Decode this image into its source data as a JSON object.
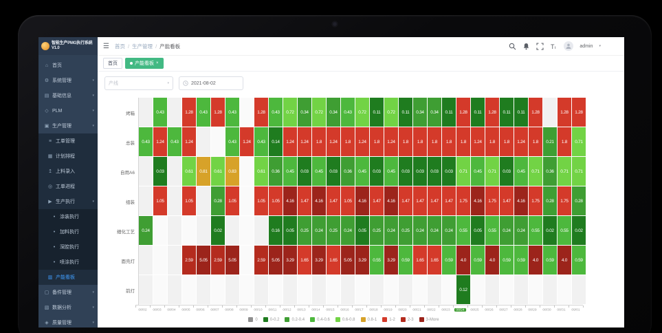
{
  "window": {
    "device": "laptop",
    "camera": "webcam-dot"
  },
  "sidebar": {
    "logo_text": "智能生产PMG执行系统V1.0",
    "items": [
      {
        "key": "home",
        "label": "首页",
        "icon": "home-icon",
        "type": "top",
        "caret": false,
        "active": false
      },
      {
        "key": "system",
        "label": "系统管理",
        "icon": "gear-icon",
        "type": "top",
        "caret": true,
        "active": false
      },
      {
        "key": "base-info",
        "label": "基础信息",
        "icon": "info-grid-icon",
        "type": "top",
        "caret": true,
        "active": false
      },
      {
        "key": "plm",
        "label": "PLM",
        "icon": "diamond-icon",
        "type": "top",
        "caret": true,
        "active": false
      },
      {
        "key": "production",
        "label": "生产管理",
        "icon": "factory-icon",
        "type": "top",
        "caret": true,
        "active": false
      },
      {
        "key": "work-order",
        "label": "工单管理",
        "icon": "list-icon",
        "type": "sub",
        "caret": false,
        "active": false
      },
      {
        "key": "schedule",
        "label": "计划排程",
        "icon": "calendar-icon",
        "type": "sub",
        "caret": false,
        "active": false
      },
      {
        "key": "material-input",
        "label": "上料录入",
        "icon": "upload-icon",
        "type": "sub",
        "caret": false,
        "active": false
      },
      {
        "key": "work-progress",
        "label": "工单进程",
        "icon": "progress-icon",
        "type": "sub",
        "caret": false,
        "active": false
      },
      {
        "key": "execution",
        "label": "生产执行",
        "icon": "play-icon",
        "type": "sub",
        "caret": true,
        "active": false
      },
      {
        "key": "coating-exec",
        "label": "涂装执行",
        "icon": "dot-icon",
        "type": "sub2",
        "caret": false,
        "active": false
      },
      {
        "key": "feeding-exec",
        "label": "加料执行",
        "icon": "dot-icon",
        "type": "sub2",
        "caret": false,
        "active": false
      },
      {
        "key": "cavity-exec",
        "label": "深腔执行",
        "icon": "dot-icon",
        "type": "sub2",
        "caret": false,
        "active": false
      },
      {
        "key": "spray-exec",
        "label": "喷涂执行",
        "icon": "dot-icon",
        "type": "sub2",
        "caret": false,
        "active": false
      },
      {
        "key": "capacity-board",
        "label": "产能看板",
        "icon": "board-icon",
        "type": "sub",
        "caret": false,
        "active": true
      },
      {
        "key": "spare-parts",
        "label": "备件管理",
        "icon": "box-icon",
        "type": "top",
        "caret": true,
        "active": false
      },
      {
        "key": "data-analysis",
        "label": "数据分析",
        "icon": "chart-icon",
        "type": "top",
        "caret": true,
        "active": false
      },
      {
        "key": "quality",
        "label": "质量管理",
        "icon": "quality-icon",
        "type": "top",
        "caret": true,
        "active": false
      }
    ]
  },
  "header": {
    "breadcrumb": [
      "首页",
      "生产管理",
      "产能看板"
    ],
    "icons": [
      "search-icon",
      "bell-icon",
      "fullscreen-icon",
      "font-size-icon"
    ],
    "user_name": "admin"
  },
  "tabs": [
    {
      "label": "首页",
      "active": false,
      "closable": false
    },
    {
      "label": "产能看板",
      "active": true,
      "closable": true
    }
  ],
  "filters": {
    "line_placeholder": "产线",
    "date_value": "2021-08-02"
  },
  "chart_data": {
    "type": "heatmap",
    "title": "",
    "xlabel": "",
    "ylabel": "",
    "x_labels": [
      "08/02",
      "08/03",
      "08/04",
      "08/05",
      "08/06",
      "08/07",
      "08/08",
      "08/09",
      "08/10",
      "08/11",
      "08/12",
      "08/13",
      "08/14",
      "08/15",
      "08/16",
      "08/17",
      "08/18",
      "08/19",
      "08/20",
      "08/21",
      "08/22",
      "08/23",
      "08/24",
      "08/25",
      "08/26",
      "08/27",
      "08/28",
      "08/29",
      "08/30",
      "08/31",
      "09/01"
    ],
    "highlight_x": "08/24",
    "categories": [
      "烤箱",
      "总装",
      "自用A6",
      "组装",
      "细化工艺",
      "面壳灯",
      "前灯"
    ],
    "series": [
      {
        "name": "烤箱",
        "values": [
          null,
          "0.43",
          null,
          "1.28",
          "0.43",
          "1.28",
          "0.43",
          null,
          "1.28",
          "0.43",
          "0.72",
          "0.34",
          "0.72",
          "0.34",
          "0.43",
          "0.72",
          "0.11",
          "0.72",
          "0.11",
          "0.34",
          "0.34",
          "0.11",
          "1.28",
          "0.11",
          "1.28",
          "0.11",
          "0.11",
          "1.28",
          null,
          "1.28",
          "1.28"
        ]
      },
      {
        "name": "总装",
        "values": [
          "0.43",
          "1.24",
          "0.43",
          "1.24",
          null,
          null,
          "0.43",
          "1.24",
          "0.43",
          "0.14",
          "1.24",
          "1.24",
          "1.8",
          "1.24",
          "1.8",
          "1.24",
          "1.8",
          "1.24",
          "1.8",
          "1.8",
          "1.8",
          "1.8",
          "1.8",
          "1.24",
          "1.8",
          "1.8",
          "1.24",
          "1.8",
          "0.21",
          "1.8",
          "0.71"
        ]
      },
      {
        "name": "自用A6",
        "values": [
          null,
          "0.03",
          null,
          "0.61",
          "0.81",
          "0.61",
          "0.83",
          null,
          "0.61",
          "0.36",
          "0.45",
          "0.03",
          "0.45",
          "0.03",
          "0.36",
          "0.45",
          "0.03",
          "0.45",
          "0.03",
          "0.03",
          "0.03",
          "0.03",
          "0.71",
          "0.45",
          "0.71",
          "0.03",
          "0.45",
          "0.71",
          "0.36",
          "0.71",
          "0.71"
        ]
      },
      {
        "name": "组装",
        "values": [
          null,
          "1.05",
          null,
          "1.05",
          null,
          "0.28",
          "1.05",
          null,
          "1.05",
          "1.05",
          "4.16",
          "1.47",
          "4.16",
          "1.47",
          "1.05",
          "4.16",
          "1.47",
          "4.16",
          "1.47",
          "1.47",
          "1.47",
          "1.47",
          "1.75",
          "4.16",
          "1.75",
          "1.47",
          "4.16",
          "1.75",
          "0.28",
          "1.75",
          "0.28"
        ]
      },
      {
        "name": "细化工艺",
        "values": [
          "0.24",
          null,
          null,
          null,
          null,
          "0.02",
          null,
          null,
          null,
          "0.16",
          "0.05",
          "0.25",
          "0.24",
          "0.25",
          "0.24",
          "0.05",
          "0.25",
          "0.24",
          "0.25",
          "0.24",
          "0.24",
          "0.24",
          "0.55",
          "0.05",
          "0.55",
          "0.24",
          "0.24",
          "0.55",
          "0.02",
          "0.55",
          "0.02"
        ]
      },
      {
        "name": "面壳灯",
        "values": [
          null,
          null,
          null,
          "2.59",
          "5.05",
          "2.59",
          "5.05",
          null,
          "2.59",
          "5.05",
          "3.29",
          "1.65",
          "3.29",
          "1.65",
          "5.05",
          "3.29",
          "0.55",
          "3.29",
          "0.59",
          "1.65",
          "1.65",
          "0.59",
          "4.0",
          "0.59",
          "4.0",
          "0.59",
          "0.59",
          "4.0",
          "0.59",
          "4.0",
          "0.59"
        ]
      },
      {
        "name": "前灯",
        "values": [
          null,
          null,
          null,
          null,
          null,
          null,
          null,
          null,
          null,
          null,
          null,
          null,
          null,
          null,
          null,
          null,
          null,
          null,
          null,
          null,
          null,
          null,
          "0.12",
          null,
          null,
          null,
          null,
          null,
          null,
          null,
          null
        ]
      }
    ],
    "color_scale": [
      {
        "max": 0.2,
        "color": "#1f7c1f",
        "label": "0-0.2"
      },
      {
        "max": 0.4,
        "color": "#3f9e33",
        "label": "0.2-0.4"
      },
      {
        "max": 0.6,
        "color": "#4db83d",
        "label": "0.4-0.6"
      },
      {
        "max": 0.8,
        "color": "#72d345",
        "label": "0.6-0.8"
      },
      {
        "max": 1.0,
        "color": "#d7a229",
        "label": "0.8-1"
      },
      {
        "max": 2.0,
        "color": "#d43a2a",
        "label": "1-2"
      },
      {
        "max": 3.0,
        "color": "#b42b1e",
        "label": "2-3"
      },
      {
        "max": 9999,
        "color": "#9c241b",
        "label": "3-More"
      }
    ],
    "legend_position": "bottom",
    "grid": false
  },
  "legend": [
    {
      "color": "#8f8f8f",
      "label": "0"
    },
    {
      "color": "#1f7c1f",
      "label": "0-0.2"
    },
    {
      "color": "#3f9e33",
      "label": "0.2-0.4"
    },
    {
      "color": "#4db83d",
      "label": "0.4-0.6"
    },
    {
      "color": "#72d345",
      "label": "0.6-0.8"
    },
    {
      "color": "#d7a229",
      "label": "0.8-1"
    },
    {
      "color": "#d43a2a",
      "label": "1-2"
    },
    {
      "color": "#b42b1e",
      "label": "2-3"
    },
    {
      "color": "#9c241b",
      "label": "3-More"
    }
  ]
}
